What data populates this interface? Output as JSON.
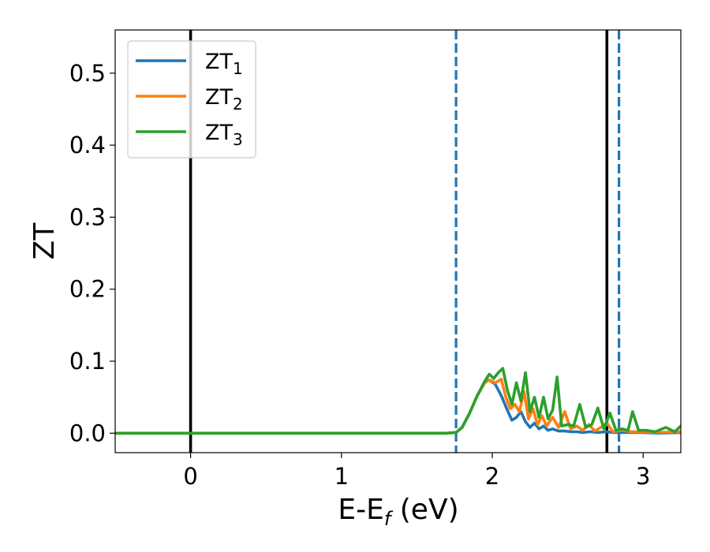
{
  "chart_data": {
    "type": "line",
    "xlabel": {
      "main": "E-E",
      "sub": "f",
      "unit": " (eV)"
    },
    "ylabel": "ZT",
    "xlim": [
      -0.5,
      3.25
    ],
    "ylim": [
      -0.027,
      0.56
    ],
    "x_ticks": [
      {
        "value": 0,
        "label": "0"
      },
      {
        "value": 1,
        "label": "1"
      },
      {
        "value": 2,
        "label": "2"
      },
      {
        "value": 3,
        "label": "3"
      }
    ],
    "y_ticks": [
      {
        "value": 0.0,
        "label": "0.0"
      },
      {
        "value": 0.1,
        "label": "0.1"
      },
      {
        "value": 0.2,
        "label": "0.2"
      },
      {
        "value": 0.3,
        "label": "0.3"
      },
      {
        "value": 0.4,
        "label": "0.4"
      },
      {
        "value": 0.5,
        "label": "0.5"
      }
    ],
    "grid": false,
    "legend_position": "top-left",
    "vertical_lines": [
      {
        "x": 0.0,
        "style": "solid",
        "color": "#000000"
      },
      {
        "x": 2.76,
        "style": "solid",
        "color": "#000000"
      },
      {
        "x": 1.76,
        "style": "dashed",
        "color": "#1f77b4"
      },
      {
        "x": 2.84,
        "style": "dashed",
        "color": "#1f77b4"
      }
    ],
    "series": [
      {
        "name": {
          "main": "ZT",
          "sub": "1"
        },
        "color": "#1f77b4",
        "x": [
          -0.5,
          1.7,
          1.76,
          1.8,
          1.85,
          1.9,
          1.95,
          1.98,
          2.02,
          2.06,
          2.1,
          2.13,
          2.16,
          2.19,
          2.22,
          2.25,
          2.28,
          2.31,
          2.34,
          2.37,
          2.4,
          2.44,
          2.48,
          2.52,
          2.56,
          2.6,
          2.65,
          2.7,
          2.76,
          2.8,
          2.86,
          2.92,
          3.0,
          3.1,
          3.25
        ],
        "values": [
          0,
          0,
          0.001,
          0.008,
          0.028,
          0.052,
          0.07,
          0.074,
          0.068,
          0.052,
          0.032,
          0.018,
          0.022,
          0.03,
          0.016,
          0.008,
          0.014,
          0.006,
          0.01,
          0.004,
          0.006,
          0.003,
          0.003,
          0.002,
          0.002,
          0.001,
          0.002,
          0.001,
          0.002,
          0.001,
          0.001,
          0.001,
          0.001,
          0.0,
          0.001
        ]
      },
      {
        "name": {
          "main": "ZT",
          "sub": "2"
        },
        "color": "#ff7f0e",
        "x": [
          -0.5,
          1.7,
          1.76,
          1.8,
          1.85,
          1.9,
          1.95,
          1.98,
          2.02,
          2.06,
          2.09,
          2.12,
          2.15,
          2.18,
          2.21,
          2.24,
          2.27,
          2.3,
          2.33,
          2.36,
          2.4,
          2.44,
          2.48,
          2.52,
          2.56,
          2.6,
          2.64,
          2.68,
          2.72,
          2.76,
          2.8,
          2.86,
          2.92,
          3.0,
          3.1,
          3.25
        ],
        "values": [
          0,
          0,
          0.001,
          0.008,
          0.028,
          0.052,
          0.07,
          0.074,
          0.07,
          0.075,
          0.05,
          0.034,
          0.04,
          0.03,
          0.058,
          0.02,
          0.034,
          0.012,
          0.024,
          0.01,
          0.022,
          0.008,
          0.03,
          0.006,
          0.01,
          0.004,
          0.012,
          0.003,
          0.008,
          0.014,
          0.002,
          0.004,
          0.002,
          0.002,
          0.001,
          0.002
        ]
      },
      {
        "name": {
          "main": "ZT",
          "sub": "3"
        },
        "color": "#2ca02c",
        "x": [
          -0.5,
          1.7,
          1.76,
          1.8,
          1.85,
          1.9,
          1.95,
          1.98,
          2.01,
          2.04,
          2.07,
          2.1,
          2.13,
          2.16,
          2.19,
          2.22,
          2.25,
          2.28,
          2.31,
          2.34,
          2.37,
          2.4,
          2.43,
          2.46,
          2.5,
          2.54,
          2.58,
          2.62,
          2.66,
          2.7,
          2.74,
          2.78,
          2.82,
          2.86,
          2.9,
          2.93,
          2.97,
          3.02,
          3.08,
          3.15,
          3.21,
          3.25
        ],
        "values": [
          0,
          0,
          0.001,
          0.008,
          0.028,
          0.052,
          0.072,
          0.082,
          0.076,
          0.084,
          0.09,
          0.06,
          0.04,
          0.07,
          0.045,
          0.084,
          0.03,
          0.05,
          0.022,
          0.05,
          0.02,
          0.032,
          0.078,
          0.01,
          0.012,
          0.01,
          0.04,
          0.008,
          0.012,
          0.035,
          0.006,
          0.028,
          0.004,
          0.006,
          0.004,
          0.03,
          0.004,
          0.004,
          0.002,
          0.008,
          0.002,
          0.01
        ]
      }
    ]
  }
}
